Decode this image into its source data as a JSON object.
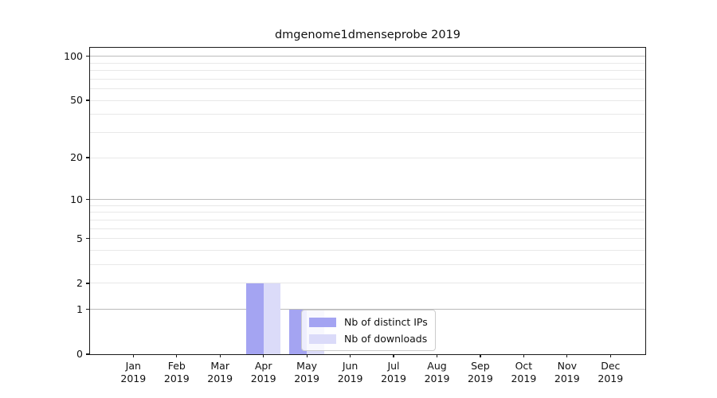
{
  "chart_data": {
    "type": "bar",
    "title": "dmgenome1dmenseprobe 2019",
    "categories": [
      "Jan",
      "Feb",
      "Mar",
      "Apr",
      "May",
      "Jun",
      "Jul",
      "Aug",
      "Sep",
      "Oct",
      "Nov",
      "Dec"
    ],
    "year_label": "2019",
    "series": [
      {
        "name": "Nb of distinct IPs",
        "color": "#a4a4f2",
        "values": [
          0,
          0,
          0,
          2,
          1,
          0,
          0,
          0,
          0,
          0,
          0,
          0
        ]
      },
      {
        "name": "Nb of downloads",
        "color": "#dbdbf9",
        "values": [
          0,
          0,
          0,
          2,
          1,
          0,
          0,
          0,
          0,
          0,
          0,
          0
        ]
      }
    ],
    "yscale": "log1p",
    "ylim": [
      0,
      113
    ],
    "yticks": [
      100,
      50,
      20,
      10,
      5,
      2,
      1,
      0
    ],
    "grid": {
      "major_values": [
        1,
        10,
        100
      ],
      "minor_values": [
        2,
        3,
        4,
        5,
        6,
        7,
        8,
        9,
        20,
        30,
        40,
        50,
        60,
        70,
        80,
        90
      ],
      "major_color": "#bbbbbb",
      "minor_color": "#e8e8e8"
    },
    "legend": {
      "position": "lower center inside"
    }
  }
}
